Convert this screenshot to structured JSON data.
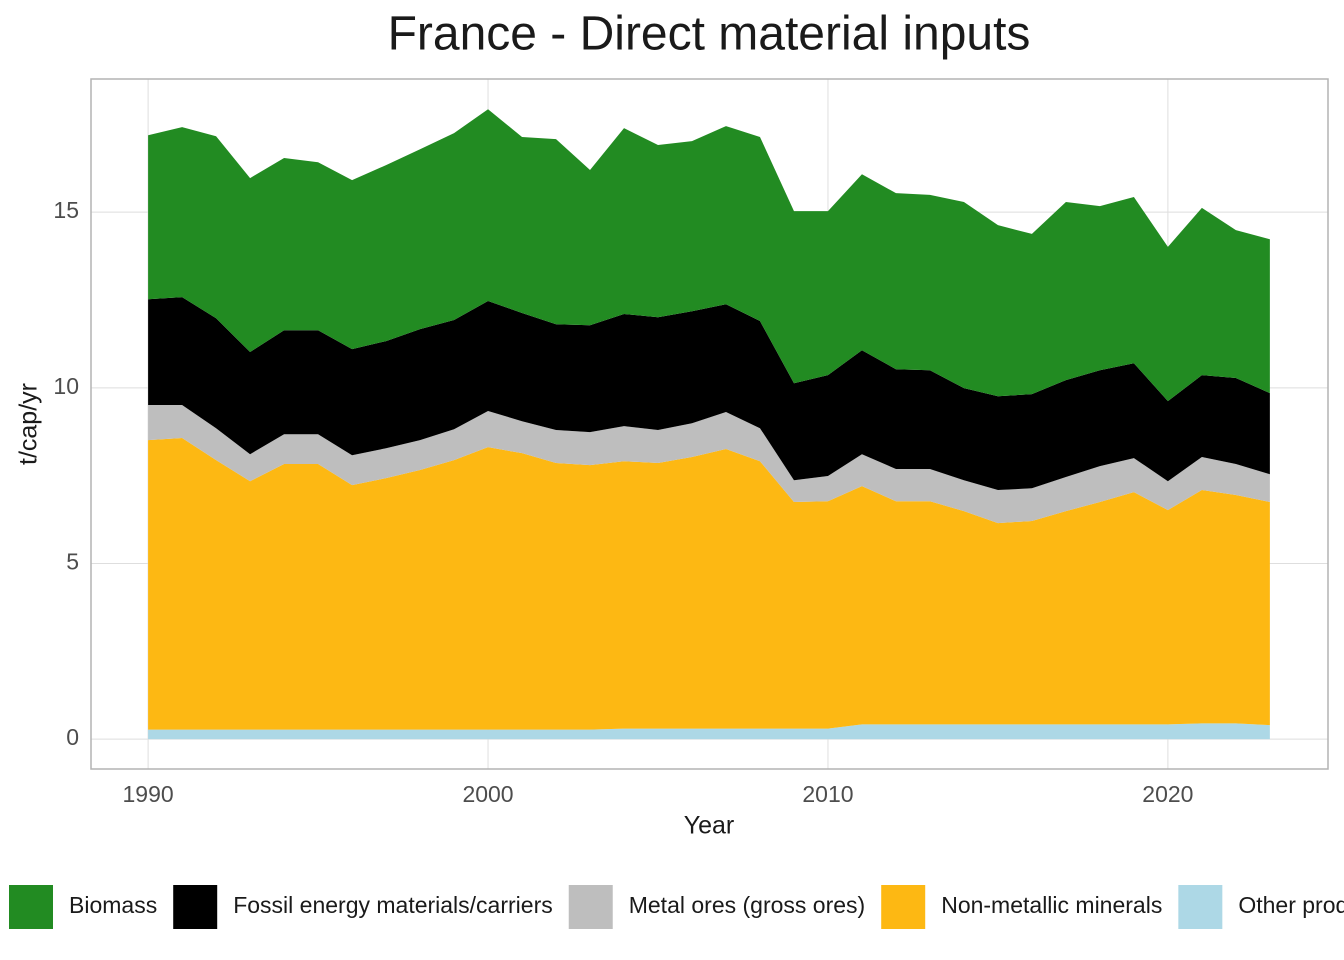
{
  "chart_data": {
    "type": "stacked_area",
    "title": "France  -  Direct material inputs",
    "x_label": "Year",
    "y_label": "t/cap/yr",
    "x": [
      1990,
      1991,
      1992,
      1993,
      1994,
      1995,
      1996,
      1997,
      1998,
      1999,
      2000,
      2001,
      2002,
      2003,
      2004,
      2005,
      2006,
      2007,
      2008,
      2009,
      2010,
      2011,
      2012,
      2013,
      2014,
      2015,
      2016,
      2017,
      2018,
      2019,
      2020,
      2021,
      2022,
      2023
    ],
    "series": [
      {
        "name": "Biomass",
        "color": "#228b22",
        "values": [
          4.67,
          4.84,
          5.18,
          4.95,
          4.9,
          4.78,
          4.81,
          5.01,
          5.12,
          5.32,
          5.46,
          5.01,
          5.27,
          4.42,
          5.29,
          4.9,
          4.84,
          5.07,
          5.24,
          4.9,
          4.67,
          5.01,
          5.01,
          4.99,
          5.3,
          4.87,
          4.56,
          5.07,
          4.67,
          4.73,
          4.39,
          4.76,
          4.21,
          4.38
        ]
      },
      {
        "name": "Fossil energy materials/carriers",
        "color": "#000000",
        "values": [
          3.01,
          3.07,
          3.13,
          2.91,
          2.96,
          2.96,
          3.02,
          3.05,
          3.16,
          3.11,
          3.13,
          3.08,
          3.01,
          3.04,
          3.19,
          3.21,
          3.19,
          3.07,
          3.05,
          2.76,
          2.87,
          2.96,
          2.84,
          2.81,
          2.62,
          2.67,
          2.68,
          2.76,
          2.73,
          2.7,
          2.28,
          2.33,
          2.45,
          2.31
        ]
      },
      {
        "name": "Metal ores (gross ores)",
        "color": "#bebebe",
        "values": [
          1.0,
          0.94,
          0.91,
          0.77,
          0.85,
          0.85,
          0.85,
          0.85,
          0.85,
          0.88,
          1.03,
          0.91,
          0.94,
          0.94,
          1.0,
          0.94,
          0.96,
          1.05,
          0.94,
          0.62,
          0.72,
          0.91,
          0.92,
          0.92,
          0.88,
          0.94,
          0.93,
          0.97,
          1.02,
          0.97,
          0.82,
          0.94,
          0.88,
          0.79
        ]
      },
      {
        "name": "Non-metallic minerals",
        "color": "#fdb813",
        "values": [
          8.24,
          8.3,
          7.67,
          7.07,
          7.56,
          7.56,
          6.96,
          7.16,
          7.39,
          7.67,
          8.04,
          7.87,
          7.59,
          7.53,
          7.61,
          7.56,
          7.73,
          7.96,
          7.61,
          6.45,
          6.47,
          6.78,
          6.35,
          6.35,
          6.07,
          5.73,
          5.79,
          6.07,
          6.33,
          6.61,
          6.1,
          6.64,
          6.5,
          6.35
        ]
      },
      {
        "name": "Other products",
        "color": "#add8e6",
        "values": [
          0.27,
          0.27,
          0.27,
          0.27,
          0.27,
          0.27,
          0.27,
          0.27,
          0.27,
          0.27,
          0.27,
          0.27,
          0.27,
          0.27,
          0.3,
          0.3,
          0.3,
          0.3,
          0.3,
          0.3,
          0.3,
          0.42,
          0.42,
          0.42,
          0.42,
          0.42,
          0.42,
          0.42,
          0.42,
          0.42,
          0.42,
          0.45,
          0.45,
          0.4
        ]
      }
    ],
    "xlim": [
      1988.32,
      2024.71
    ],
    "xticks": [
      1990,
      2000,
      2010,
      2020
    ],
    "ylim": [
      -0.85,
      18.79
    ],
    "yticks": [
      0,
      5,
      10,
      15
    ],
    "grid": true,
    "legend": "bottom"
  }
}
